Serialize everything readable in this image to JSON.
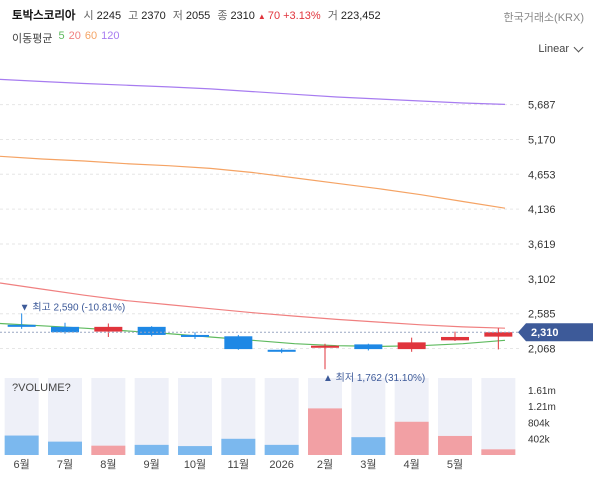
{
  "header": {
    "name": "토박스코리아",
    "open_label": "시",
    "open": "2245",
    "high_label": "고",
    "high": "2370",
    "low_label": "저",
    "low": "2055",
    "close_label": "종",
    "close": "2310",
    "change": "70",
    "change_pct": "+3.13%",
    "volume_label": "거",
    "volume": "223,452",
    "exchange": "한국거래소(KRX)"
  },
  "moving_average": {
    "title": "이동평균",
    "periods": [
      "5",
      "20",
      "60",
      "120"
    ],
    "colors": [
      "#5fba5f",
      "#f08080",
      "#f5a364",
      "#a77cf0"
    ]
  },
  "scale_selector": {
    "label": "Linear"
  },
  "colors": {
    "up": "#e0343c",
    "down": "#1e88e5",
    "price_tag": "#3d5a99"
  },
  "chart_data": {
    "type": "candlestick",
    "x_labels": [
      "6월",
      "7월",
      "8월",
      "9월",
      "10월",
      "11월",
      "2026",
      "2월",
      "3월",
      "4월",
      "5월"
    ],
    "candles": [
      {
        "open": 2420,
        "close": 2390,
        "high": 2590,
        "low": 2360
      },
      {
        "open": 2390,
        "close": 2310,
        "high": 2450,
        "low": 2290
      },
      {
        "open": 2320,
        "close": 2390,
        "high": 2440,
        "low": 2240
      },
      {
        "open": 2390,
        "close": 2270,
        "high": 2400,
        "low": 2250
      },
      {
        "open": 2270,
        "close": 2240,
        "high": 2310,
        "low": 2210
      },
      {
        "open": 2250,
        "close": 2060,
        "high": 2270,
        "low": 2050
      },
      {
        "open": 2050,
        "close": 2020,
        "high": 2070,
        "low": 2000
      },
      {
        "open": 2080,
        "close": 2110,
        "high": 2140,
        "low": 1762
      },
      {
        "open": 2130,
        "close": 2060,
        "high": 2140,
        "low": 2040
      },
      {
        "open": 2060,
        "close": 2160,
        "high": 2230,
        "low": 2020
      },
      {
        "open": 2190,
        "close": 2240,
        "high": 2320,
        "low": 2180
      },
      {
        "open": 2245,
        "close": 2310,
        "high": 2370,
        "low": 2055
      }
    ],
    "ma5": [
      2440,
      2405,
      2370,
      2330,
      2290,
      2240,
      2190,
      2140,
      2110,
      2100,
      2110,
      2140,
      2190
    ],
    "ma20": [
      3040,
      2950,
      2860,
      2780,
      2720,
      2660,
      2600,
      2550,
      2500,
      2460,
      2420,
      2390,
      2370
    ],
    "ma60": [
      4920,
      4880,
      4850,
      4810,
      4780,
      4740,
      4680,
      4600,
      4520,
      4440,
      4350,
      4250,
      4150
    ],
    "ma120": [
      6060,
      6030,
      6000,
      5975,
      5950,
      5920,
      5880,
      5840,
      5800,
      5770,
      5740,
      5710,
      5690
    ],
    "y_ticks": [
      "5,687",
      "5,170",
      "4,653",
      "4,136",
      "3,619",
      "3,102",
      "2,585",
      "2,068"
    ],
    "ylim": [
      1750,
      6200
    ],
    "current_price": "2,310",
    "high_annotation": "최고 2,590 (-10.81%)",
    "low_annotation": "최저 1,762 (31.10%)",
    "volume_title": "?VOLUME?",
    "volume": [
      480000,
      330000,
      230000,
      250000,
      220000,
      400000,
      250000,
      1150000,
      440000,
      820000,
      470000,
      140000
    ],
    "volume_ticks": [
      "1.61m",
      "1.21m",
      "804k",
      "402k"
    ],
    "volume_max": 1900000
  }
}
